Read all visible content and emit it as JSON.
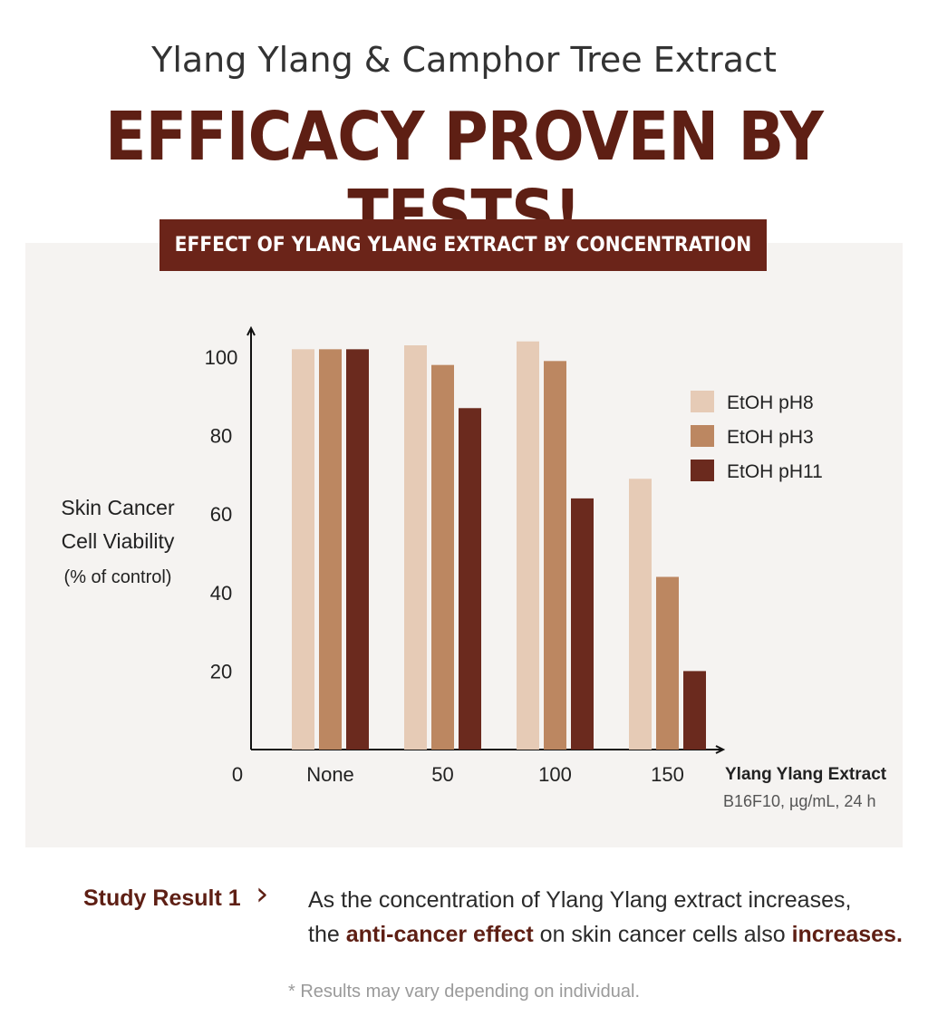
{
  "header": {
    "subtitle": "Ylang Ylang & Camphor Tree Extract",
    "headline": "EFFICACY PROVEN BY TESTS!"
  },
  "banner": "EFFECT OF YLANG YLANG EXTRACT BY CONCENTRATION",
  "colors": {
    "brand": "#5e1f14",
    "banner_bg": "#6b2419",
    "panel_bg": "#f5f3f1"
  },
  "chart_data": {
    "type": "bar",
    "categories": [
      "None",
      "50",
      "100",
      "150"
    ],
    "series": [
      {
        "name": "EtOH pH8",
        "color": "#e6cbb6",
        "values": [
          102,
          103,
          104,
          69
        ]
      },
      {
        "name": "EtOH pH3",
        "color": "#bc8761",
        "values": [
          102,
          98,
          99,
          44
        ]
      },
      {
        "name": "EtOH pH11",
        "color": "#6b2a1e",
        "values": [
          102,
          87,
          64,
          20
        ]
      }
    ],
    "yticks": [
      20,
      40,
      60,
      80,
      100
    ],
    "y_origin_label": "0",
    "ylim": [
      0,
      105
    ],
    "ylabel": [
      "Skin Cancer",
      "Cell Viability",
      "(% of control)"
    ],
    "xlabel": "Ylang Ylang Extract",
    "xlabel_note": "B16F10, µg/mL, 24 h",
    "legend_position": "top-right"
  },
  "result": {
    "label": "Study Result 1",
    "chevron": "›",
    "line1": "As the concentration of Ylang Ylang extract increases,",
    "line2_pre": "the ",
    "line2_em1": "anti-cancer effect",
    "line2_mid": " on skin cancer cells also ",
    "line2_em2": "increases."
  },
  "note": "* Results may vary depending on individual."
}
